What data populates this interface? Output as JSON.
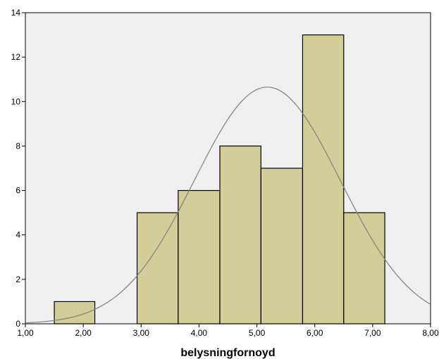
{
  "chart_data": {
    "type": "bar",
    "subtype": "histogram",
    "xlabel": "belysningfornoyd",
    "ylabel": "",
    "xlim": [
      1.0,
      8.0
    ],
    "ylim": [
      0,
      14
    ],
    "x_ticks": [
      1.0,
      2.0,
      3.0,
      4.0,
      5.0,
      6.0,
      7.0,
      8.0
    ],
    "x_tick_labels": [
      "1,00",
      "2,00",
      "3,00",
      "4,00",
      "5,00",
      "6,00",
      "7,00",
      "8,00"
    ],
    "y_ticks": [
      0,
      2,
      4,
      6,
      8,
      10,
      12,
      14
    ],
    "y_tick_labels": [
      "0",
      "2",
      "4",
      "6",
      "8",
      "10",
      "12",
      "14"
    ],
    "bins": [
      {
        "start": 1.5,
        "end": 2.2,
        "count": 1
      },
      {
        "start": 2.2,
        "end": 2.93,
        "count": 0
      },
      {
        "start": 2.93,
        "end": 3.64,
        "count": 5
      },
      {
        "start": 3.64,
        "end": 4.36,
        "count": 6
      },
      {
        "start": 4.36,
        "end": 5.07,
        "count": 8
      },
      {
        "start": 5.07,
        "end": 5.79,
        "count": 7
      },
      {
        "start": 5.79,
        "end": 6.5,
        "count": 13
      },
      {
        "start": 6.5,
        "end": 7.21,
        "count": 5
      }
    ],
    "normal_curve": {
      "mean": 5.18,
      "peak": 10.65,
      "sd": 1.26
    },
    "colors": {
      "bar_fill": "#d3ce98",
      "plot_background": "#f0f0f0",
      "curve": "#808080"
    }
  }
}
